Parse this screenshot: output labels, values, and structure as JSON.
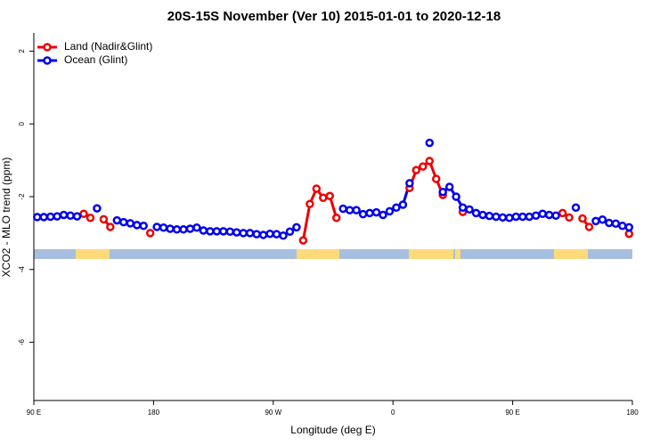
{
  "chart_data": {
    "type": "line",
    "title": "20S-15S November (Ver 10)   2015-01-01 to 2020-12-18",
    "x_label": "Longitude (deg E)",
    "y_label": "XCO2 - MLO trend (ppm)",
    "x": [
      -267.5,
      -262.5,
      -257.5,
      -252.5,
      -247.5,
      -242.5,
      -237.5,
      -232.5,
      -227.5,
      -222.5,
      -217.5,
      -212.5,
      -207.5,
      -202.5,
      -197.5,
      -192.5,
      -187.5,
      -182.5,
      -177.5,
      -172.5,
      -167.5,
      -162.5,
      -157.5,
      -152.5,
      -147.5,
      -142.5,
      -137.5,
      -132.5,
      -127.5,
      -122.5,
      -117.5,
      -112.5,
      -107.5,
      -102.5,
      -97.5,
      -92.5,
      -87.5,
      -82.5,
      -77.5,
      -72.5,
      -67.5,
      -62.5,
      -57.5,
      -52.5,
      -47.5,
      -42.5,
      -37.5,
      -32.5,
      -27.5,
      -22.5,
      -17.5,
      -12.5,
      -7.5,
      -2.5,
      2.5,
      7.5,
      12.5,
      17.5,
      22.5,
      27.5,
      32.5,
      37.5,
      42.5,
      47.5,
      52.5,
      57.5,
      62.5,
      67.5,
      72.5,
      77.5,
      82.5,
      87.5,
      92.5,
      97.5,
      102.5,
      107.5,
      112.5,
      117.5,
      122.5,
      127.5,
      132.5,
      137.5,
      142.5,
      147.5,
      152.5,
      157.5,
      162.5,
      167.5,
      172.5,
      177.5
    ],
    "series": [
      {
        "name": "Land (Nadir&Glint)",
        "color": "#ee0000",
        "values": [
          null,
          null,
          null,
          null,
          null,
          null,
          null,
          -2.47,
          -2.58,
          null,
          -2.62,
          -2.83,
          null,
          null,
          null,
          null,
          null,
          -3.0,
          null,
          null,
          null,
          null,
          null,
          null,
          null,
          null,
          null,
          null,
          null,
          null,
          null,
          null,
          null,
          null,
          null,
          null,
          null,
          null,
          null,
          null,
          -3.2,
          -2.2,
          -1.78,
          -2.03,
          -1.98,
          -2.58,
          null,
          null,
          null,
          null,
          null,
          null,
          null,
          null,
          null,
          null,
          -1.76,
          -1.27,
          -1.17,
          -1.02,
          -1.51,
          -1.95,
          null,
          null,
          -2.42,
          null,
          null,
          null,
          null,
          null,
          null,
          null,
          null,
          null,
          null,
          null,
          null,
          null,
          null,
          -2.45,
          -2.57,
          null,
          -2.6,
          -2.83,
          null,
          null,
          null,
          null,
          null,
          -3.02
        ]
      },
      {
        "name": "Ocean (Glint)",
        "color": "#0000ee",
        "values": [
          -2.56,
          -2.56,
          -2.55,
          -2.54,
          -2.5,
          -2.52,
          -2.54,
          null,
          null,
          -2.32,
          null,
          null,
          -2.65,
          -2.7,
          -2.73,
          -2.78,
          -2.8,
          null,
          -2.83,
          -2.85,
          -2.88,
          -2.9,
          -2.9,
          -2.88,
          -2.85,
          -2.93,
          -2.95,
          -2.95,
          -2.95,
          -2.96,
          -2.98,
          -3.0,
          -3.0,
          -3.03,
          -3.05,
          -3.02,
          -3.03,
          -3.07,
          -2.96,
          -2.84,
          null,
          null,
          null,
          null,
          null,
          null,
          -2.33,
          -2.37,
          -2.37,
          -2.48,
          -2.45,
          -2.43,
          -2.5,
          -2.4,
          -2.3,
          -2.22,
          -1.63,
          null,
          null,
          -0.52,
          null,
          -1.87,
          -1.73,
          -2.0,
          -2.3,
          -2.35,
          -2.45,
          -2.5,
          -2.53,
          -2.55,
          -2.57,
          -2.58,
          -2.55,
          -2.55,
          -2.55,
          -2.52,
          -2.47,
          -2.5,
          -2.52,
          null,
          null,
          -2.3,
          null,
          null,
          -2.67,
          -2.63,
          -2.72,
          -2.74,
          -2.8,
          -2.84
        ]
      }
    ],
    "xlim": [
      -270,
      180
    ],
    "xticks": [
      {
        "value": -270,
        "label": "90 E"
      },
      {
        "value": -180,
        "label": "180"
      },
      {
        "value": -90,
        "label": "90 W"
      },
      0,
      {
        "value": 90,
        "label": "90 E"
      },
      180
    ],
    "ylim": [
      -7.6,
      2.5
    ],
    "yticks": [
      2,
      0,
      -2,
      -4,
      -6
    ],
    "legend": "top-left"
  }
}
